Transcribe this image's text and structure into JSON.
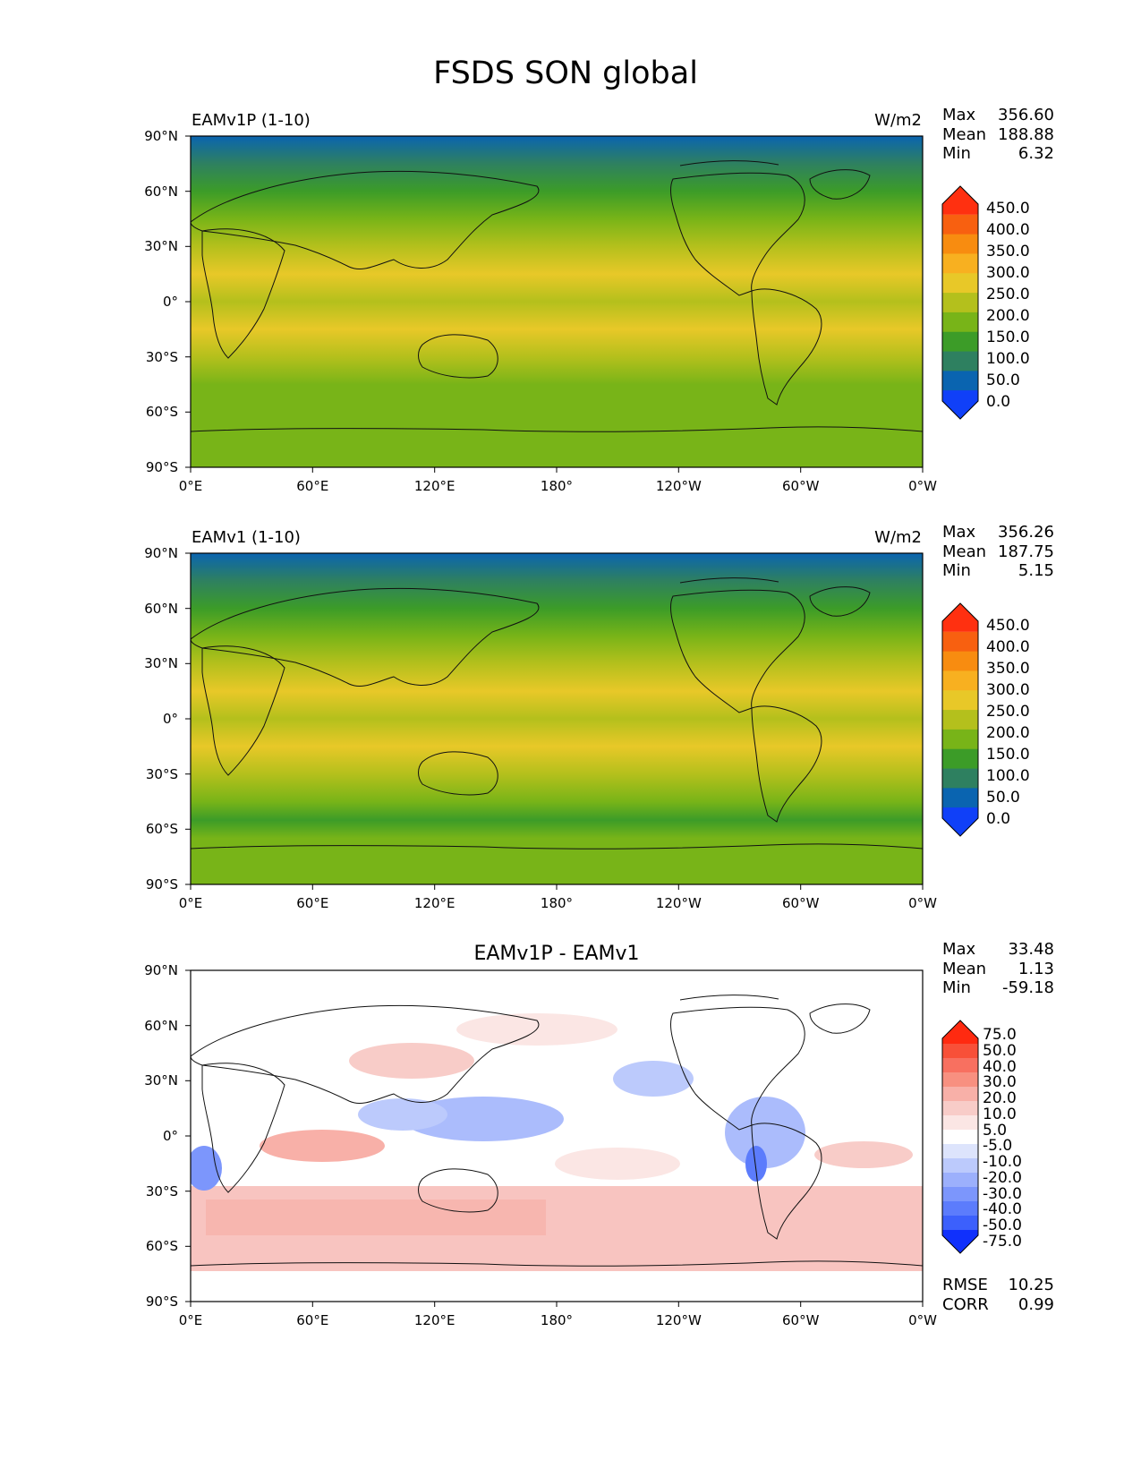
{
  "figure": {
    "title": "FSDS SON global"
  },
  "chart_data": [
    {
      "type": "heatmap",
      "title": "EAMv1P (1-10)",
      "units": "W/m2",
      "stats": [
        {
          "label": "Max",
          "value": "356.60"
        },
        {
          "label": "Mean",
          "value": "188.88"
        },
        {
          "label": "Min",
          "value": "6.32"
        }
      ],
      "x_ticks": [
        "0°E",
        "60°E",
        "120°E",
        "180°",
        "120°W",
        "60°W",
        "0°W"
      ],
      "y_ticks": [
        "90°N",
        "60°N",
        "30°N",
        "0°",
        "30°S",
        "60°S",
        "90°S"
      ],
      "xlim": [
        0,
        360
      ],
      "ylim": [
        -90,
        90
      ],
      "levels": [
        "450.0",
        "400.0",
        "350.0",
        "300.0",
        "250.0",
        "200.0",
        "150.0",
        "100.0",
        "50.0",
        "0.0"
      ],
      "colorbar_colors": [
        "#ff3010",
        "#f86010",
        "#f88c10",
        "#f8b020",
        "#e8c828",
        "#b4c01c",
        "#78b418",
        "#3c9c28",
        "#2e8060",
        "#0a64b0",
        "#1040f8"
      ],
      "zonal_mean": [
        [
          90,
          30
        ],
        [
          75,
          80
        ],
        [
          60,
          120
        ],
        [
          45,
          170
        ],
        [
          30,
          225
        ],
        [
          15,
          260
        ],
        [
          0,
          240
        ],
        [
          -15,
          265
        ],
        [
          -30,
          245
        ],
        [
          -45,
          185
        ],
        [
          -55,
          150
        ],
        [
          -65,
          175
        ],
        [
          -75,
          185
        ],
        [
          -90,
          185
        ]
      ],
      "stats_extra": []
    },
    {
      "type": "heatmap",
      "title": "EAMv1 (1-10)",
      "units": "W/m2",
      "stats": [
        {
          "label": "Max",
          "value": "356.26"
        },
        {
          "label": "Mean",
          "value": "187.75"
        },
        {
          "label": "Min",
          "value": "5.15"
        }
      ],
      "x_ticks": [
        "0°E",
        "60°E",
        "120°E",
        "180°",
        "120°W",
        "60°W",
        "0°W"
      ],
      "y_ticks": [
        "90°N",
        "60°N",
        "30°N",
        "0°",
        "30°S",
        "60°S",
        "90°S"
      ],
      "xlim": [
        0,
        360
      ],
      "ylim": [
        -90,
        90
      ],
      "levels": [
        "450.0",
        "400.0",
        "350.0",
        "300.0",
        "250.0",
        "200.0",
        "150.0",
        "100.0",
        "50.0",
        "0.0"
      ],
      "colorbar_colors": [
        "#ff3010",
        "#f86010",
        "#f88c10",
        "#f8b020",
        "#e8c828",
        "#b4c01c",
        "#78b418",
        "#3c9c28",
        "#2e8060",
        "#0a64b0",
        "#1040f8"
      ],
      "zonal_mean": [
        [
          90,
          30
        ],
        [
          75,
          80
        ],
        [
          60,
          120
        ],
        [
          45,
          170
        ],
        [
          30,
          220
        ],
        [
          15,
          255
        ],
        [
          0,
          240
        ],
        [
          -15,
          262
        ],
        [
          -30,
          240
        ],
        [
          -45,
          175
        ],
        [
          -55,
          140
        ],
        [
          -65,
          160
        ],
        [
          -75,
          180
        ],
        [
          -90,
          180
        ]
      ],
      "stats_extra": []
    },
    {
      "type": "heatmap",
      "title": "EAMv1P - EAMv1",
      "units": "",
      "stats": [
        {
          "label": "Max",
          "value": "33.48"
        },
        {
          "label": "Mean",
          "value": "1.13"
        },
        {
          "label": "Min",
          "value": "-59.18"
        }
      ],
      "x_ticks": [
        "0°E",
        "60°E",
        "120°E",
        "180°",
        "120°W",
        "60°W",
        "0°W"
      ],
      "y_ticks": [
        "90°N",
        "60°N",
        "30°N",
        "0°",
        "30°S",
        "60°S",
        "90°S"
      ],
      "xlim": [
        0,
        360
      ],
      "ylim": [
        -90,
        90
      ],
      "levels": [
        "75.0",
        "50.0",
        "40.0",
        "30.0",
        "20.0",
        "10.0",
        "5.0",
        "-5.0",
        "-10.0",
        "-20.0",
        "-30.0",
        "-40.0",
        "-50.0",
        "-75.0"
      ],
      "colorbar_colors": [
        "#ff2a10",
        "#f85038",
        "#f87060",
        "#f89080",
        "#f8b0a8",
        "#f8ccc8",
        "#fbe6e4",
        "#ffffff",
        "#dde4fc",
        "#bccafc",
        "#9cb0fc",
        "#7c96fc",
        "#5c7cfc",
        "#3c60fc",
        "#1030fc"
      ],
      "stats_extra": [
        {
          "label": "RMSE",
          "value": "10.25"
        },
        {
          "label": "CORR",
          "value": "0.99"
        }
      ]
    }
  ]
}
